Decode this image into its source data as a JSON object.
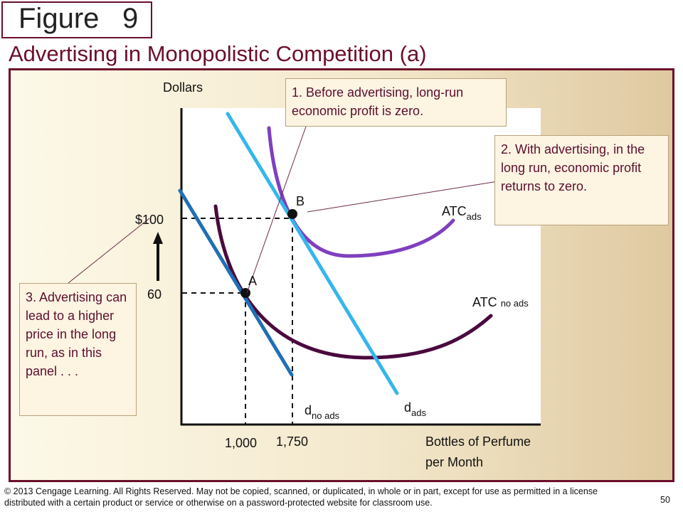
{
  "figure": {
    "word": "Figure",
    "number": "9"
  },
  "title": "Advertising in Monopolistic Competition (a)",
  "chart_data": {
    "type": "line",
    "ylabel": "Dollars",
    "xlabel_line1": "Bottles of Perfume",
    "xlabel_line2": "per Month",
    "y_ticks": [
      {
        "value": 100,
        "label": "$100"
      },
      {
        "value": 60,
        "label": "60"
      }
    ],
    "x_ticks": [
      {
        "value": 1000,
        "label": "1,000"
      },
      {
        "value": 1750,
        "label": "1,750"
      }
    ],
    "points": [
      {
        "label": "A",
        "x": 1000,
        "y": 60
      },
      {
        "label": "B",
        "x": 1750,
        "y": 100
      }
    ],
    "curves": [
      {
        "main": "ATC",
        "sub": "no ads",
        "color": "#4a0a3e"
      },
      {
        "main": "ATC",
        "sub": "ads",
        "color": "#7f3fbf"
      },
      {
        "main": "d",
        "sub": "no ads",
        "color": "#1f6fb4"
      },
      {
        "main": "d",
        "sub": "ads",
        "color": "#35b6ec"
      }
    ]
  },
  "notes": {
    "n1": "1. Before advertising, long-run economic profit is zero.",
    "n2": "2. With advertising, in the long run, economic profit returns to zero.",
    "n3": "3. Advertising can lead to a higher price in the long run, as in this panel . . ."
  },
  "footer": "© 2013 Cengage Learning. All Rights Reserved. May not be copied, scanned, or duplicated, in whole or in part, except for use as permitted in a license distributed with a certain product or service or otherwise on a password-protected website for classroom use.",
  "page_number": "50"
}
